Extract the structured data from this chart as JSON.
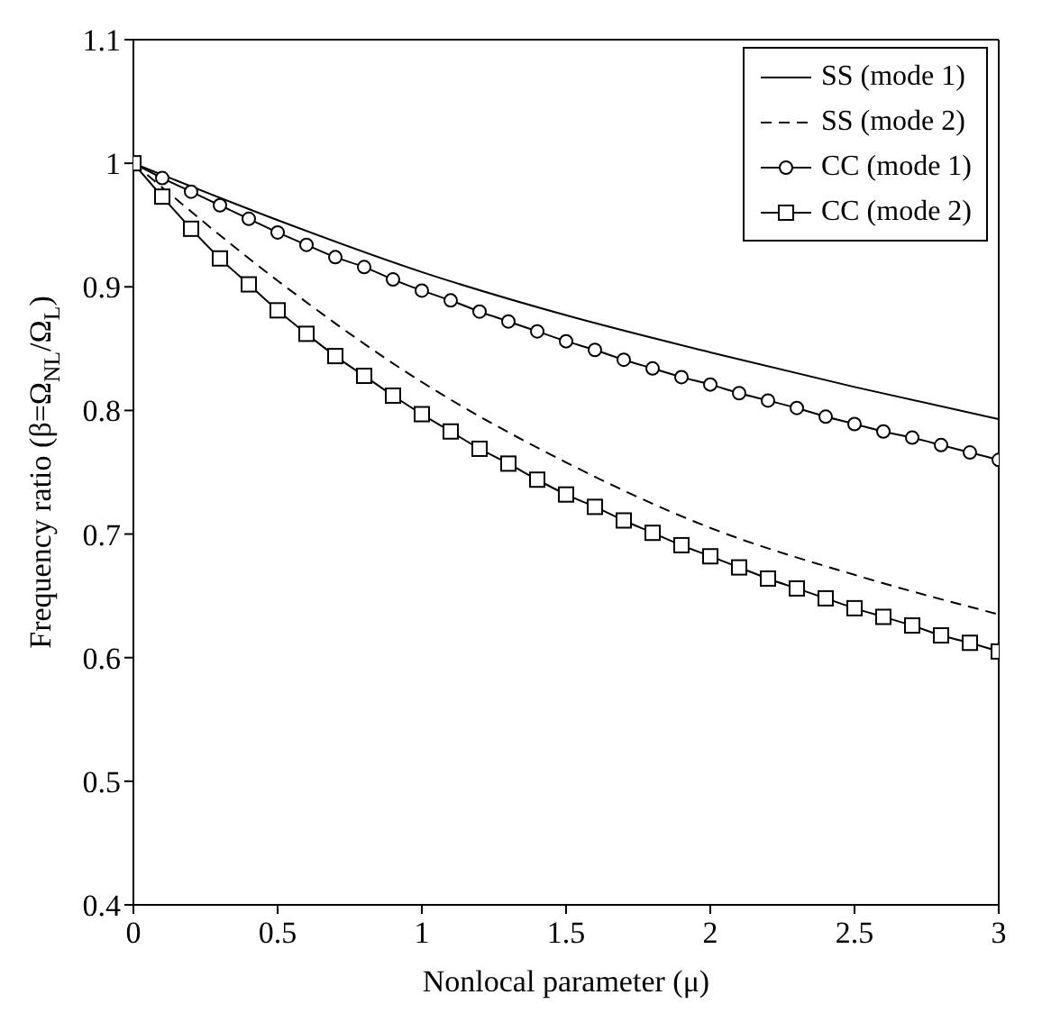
{
  "chart_data": {
    "type": "line",
    "xlabel": "Nonlocal parameter (μ)",
    "ylabel": "Frequency ratio (β=Ω$_{NL}$/Ω$_{L}$)",
    "xlim": [
      0,
      3
    ],
    "ylim": [
      0.4,
      1.1
    ],
    "xticks": [
      0,
      0.5,
      1,
      1.5,
      2,
      2.5,
      3
    ],
    "yticks": [
      0.4,
      0.5,
      0.6,
      0.7,
      0.8,
      0.9,
      1,
      1.1
    ],
    "grid": false,
    "legend": "top right",
    "series": [
      {
        "name": "SS (mode 1)",
        "color": "#000000",
        "marker": "none",
        "line_style": "solid",
        "x": [
          0,
          0.5,
          1,
          1.5,
          2,
          2.5,
          3
        ],
        "values": [
          1,
          0.954,
          0.912,
          0.877,
          0.847,
          0.819,
          0.793
        ]
      },
      {
        "name": "SS (mode 2)",
        "color": "#000000",
        "marker": "none",
        "line_style": "dashed",
        "x": [
          0,
          0.5,
          1,
          1.5,
          2,
          2.5,
          3
        ],
        "values": [
          1,
          0.905,
          0.823,
          0.758,
          0.705,
          0.667,
          0.635
        ]
      },
      {
        "name": "CC (mode 1)",
        "color": "#000000",
        "marker": "circle",
        "line_style": "solid",
        "x": [
          0,
          0.1,
          0.2,
          0.3,
          0.4,
          0.5,
          0.6,
          0.7,
          0.8,
          0.9,
          1,
          1.1,
          1.2,
          1.3,
          1.4,
          1.5,
          1.6,
          1.7,
          1.8,
          1.9,
          2,
          2.1,
          2.2,
          2.3,
          2.4,
          2.5,
          2.6,
          2.7,
          2.8,
          2.9,
          3
        ],
        "values": [
          1,
          0.988,
          0.977,
          0.966,
          0.955,
          0.944,
          0.934,
          0.924,
          0.916,
          0.906,
          0.897,
          0.889,
          0.88,
          0.872,
          0.864,
          0.856,
          0.849,
          0.841,
          0.834,
          0.827,
          0.821,
          0.814,
          0.808,
          0.802,
          0.795,
          0.789,
          0.783,
          0.778,
          0.772,
          0.766,
          0.76
        ]
      },
      {
        "name": "CC (mode 2)",
        "color": "#000000",
        "marker": "square",
        "line_style": "solid",
        "x": [
          0,
          0.1,
          0.2,
          0.3,
          0.4,
          0.5,
          0.6,
          0.7,
          0.8,
          0.9,
          1,
          1.1,
          1.2,
          1.3,
          1.4,
          1.5,
          1.6,
          1.7,
          1.8,
          1.9,
          2,
          2.1,
          2.2,
          2.3,
          2.4,
          2.5,
          2.6,
          2.7,
          2.8,
          2.9,
          3
        ],
        "values": [
          1,
          0.973,
          0.947,
          0.923,
          0.902,
          0.881,
          0.862,
          0.844,
          0.828,
          0.812,
          0.797,
          0.783,
          0.769,
          0.757,
          0.744,
          0.732,
          0.722,
          0.711,
          0.701,
          0.691,
          0.682,
          0.673,
          0.664,
          0.656,
          0.648,
          0.64,
          0.633,
          0.626,
          0.618,
          0.612,
          0.605
        ]
      }
    ]
  }
}
